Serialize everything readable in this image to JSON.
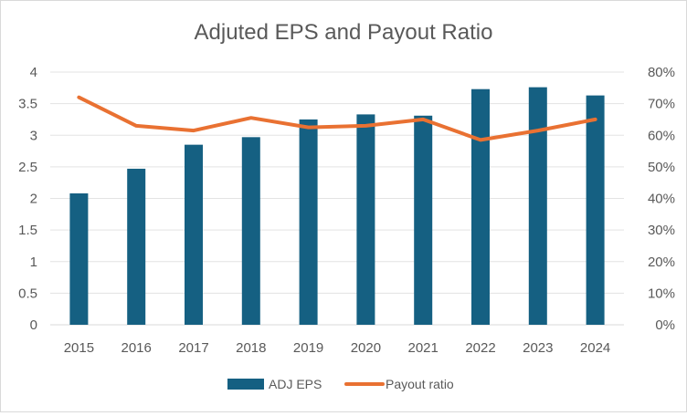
{
  "chart_data": {
    "type": "bar",
    "title": "Adjuted EPS and Payout Ratio",
    "categories": [
      "2015",
      "2016",
      "2017",
      "2018",
      "2019",
      "2020",
      "2021",
      "2022",
      "2023",
      "2024"
    ],
    "series": [
      {
        "name": "ADJ EPS",
        "type": "bar",
        "axis": "left",
        "color": "#156082",
        "values": [
          2.08,
          2.47,
          2.85,
          2.97,
          3.25,
          3.33,
          3.31,
          3.73,
          3.76,
          3.63
        ]
      },
      {
        "name": "Payout ratio",
        "type": "line",
        "axis": "right",
        "color": "#E97132",
        "values": [
          0.72,
          0.63,
          0.615,
          0.655,
          0.625,
          0.63,
          0.65,
          0.585,
          0.615,
          0.65
        ]
      }
    ],
    "y_left": {
      "min": 0,
      "max": 4,
      "ticks": [
        "0",
        "0.5",
        "1",
        "1.5",
        "2",
        "2.5",
        "3",
        "3.5",
        "4"
      ]
    },
    "y_right": {
      "min": 0,
      "max": 0.8,
      "ticks": [
        "0%",
        "10%",
        "20%",
        "30%",
        "40%",
        "50%",
        "60%",
        "70%",
        "80%"
      ]
    },
    "grid": true,
    "legend_position": "bottom"
  }
}
